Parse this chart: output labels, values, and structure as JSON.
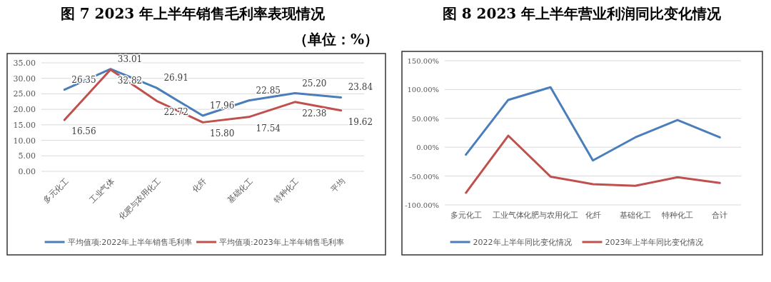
{
  "chart_data": [
    {
      "type": "line",
      "title": "图 7 2023 年上半年销售毛利率表现情况",
      "subtitle": "（单位：%）",
      "categories": [
        "多元化工",
        "工业气体",
        "化肥与农用化工",
        "化纤",
        "基础化工",
        "特种化工",
        "平均"
      ],
      "series": [
        {
          "name": "平均值项:2022年上半年销售毛利率",
          "color": "#4a7ebb",
          "values": [
            26.35,
            33.01,
            26.91,
            17.96,
            22.85,
            25.2,
            23.84
          ],
          "value_labels": [
            "26.35",
            "33.01",
            "26.91",
            "17.96",
            "22.85",
            "25.20",
            "23.84"
          ]
        },
        {
          "name": "平均值项:2023年上半年销售毛利率",
          "color": "#c0504d",
          "values": [
            16.56,
            32.82,
            22.72,
            15.8,
            17.54,
            22.38,
            19.62
          ],
          "value_labels": [
            "16.56",
            "32.82",
            "22.72",
            "15.80",
            "17.54",
            "22.38",
            "19.62"
          ]
        }
      ],
      "ylim": [
        0,
        35
      ],
      "yticks": [
        {
          "value": 0,
          "label": "0.00"
        },
        {
          "value": 5,
          "label": "5.00"
        },
        {
          "value": 10,
          "label": "10.00"
        },
        {
          "value": 15,
          "label": "15.00"
        },
        {
          "value": 20,
          "label": "20.00"
        },
        {
          "value": 25,
          "label": "25.00"
        },
        {
          "value": 30,
          "label": "30.00"
        },
        {
          "value": 35,
          "label": "35.00"
        }
      ],
      "grid": "y",
      "legend": "bottom"
    },
    {
      "type": "line",
      "title": "图 8 2023 年上半年营业利润同比变化情况",
      "categories": [
        "多元化工",
        "工业气体",
        "化肥与农用化工",
        "化纤",
        "基础化工",
        "特种化工",
        "合计"
      ],
      "series": [
        {
          "name": "2022年上半年同比变化情况",
          "color": "#4a7ebb",
          "values": [
            -13,
            82,
            104,
            -23,
            17,
            47,
            17
          ]
        },
        {
          "name": "2023年上半年同比变化情况",
          "color": "#c0504d",
          "values": [
            -79,
            20,
            -51,
            -64,
            -67,
            -52,
            -62
          ]
        }
      ],
      "ylim": [
        -100,
        150
      ],
      "yticks": [
        {
          "value": -100,
          "label": "-100.00%"
        },
        {
          "value": -50,
          "label": "-50.00%"
        },
        {
          "value": 0,
          "label": "0.00%"
        },
        {
          "value": 50,
          "label": "50.00%"
        },
        {
          "value": 100,
          "label": "100.00%"
        },
        {
          "value": 150,
          "label": "150.00%"
        }
      ],
      "grid": "y",
      "legend": "bottom"
    }
  ]
}
